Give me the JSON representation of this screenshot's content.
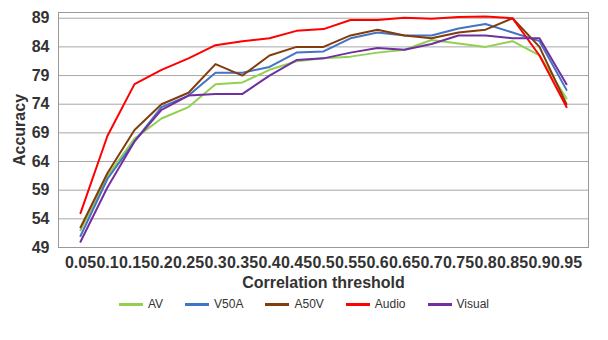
{
  "chart_data": {
    "type": "line",
    "x_label": "Correlation threshold",
    "y_label": "Accuracy",
    "categories": [
      "0.05",
      "0.1",
      "0.15",
      "0.2",
      "0.25",
      "0.3",
      "0.35",
      "0.4",
      "0.45",
      "0.5",
      "0.55",
      "0.6",
      "0.65",
      "0.7",
      "0.75",
      "0.8",
      "0.85",
      "0.9",
      "0.95"
    ],
    "series": [
      {
        "name": "AV",
        "color": "#92d050",
        "values": [
          52,
          61.5,
          68,
          71.5,
          73.5,
          77.5,
          77.8,
          80,
          81.5,
          82,
          82.3,
          83,
          83.5,
          85.2,
          84.6,
          84,
          85,
          82.5,
          75
        ]
      },
      {
        "name": "V50A",
        "color": "#4472c4",
        "values": [
          51,
          61,
          67.5,
          73.5,
          75.5,
          79.5,
          79.5,
          80.5,
          83,
          83.2,
          85.5,
          86.5,
          86,
          86,
          87.2,
          88,
          86.5,
          85,
          76.5
        ]
      },
      {
        "name": "A50V",
        "color": "#843c0c",
        "values": [
          52.5,
          62,
          69.5,
          74,
          76,
          81,
          79,
          82.5,
          84,
          84,
          86,
          87,
          86,
          85.5,
          86.5,
          87,
          89,
          84,
          74
        ]
      },
      {
        "name": "Audio",
        "color": "#ff0000",
        "values": [
          55,
          68.5,
          77.5,
          80,
          82,
          84.3,
          85,
          85.5,
          86.8,
          87.1,
          88.7,
          88.7,
          89.1,
          88.9,
          89.2,
          89.3,
          89,
          82.5,
          73.5
        ]
      },
      {
        "name": "Visual",
        "color": "#7030a0",
        "values": [
          50,
          59.5,
          67.5,
          73,
          75.5,
          75.8,
          75.8,
          79,
          81.7,
          82,
          83,
          83.8,
          83.5,
          84.5,
          86,
          86,
          85.5,
          85.5,
          77.5
        ]
      }
    ],
    "ylim": [
      49,
      90
    ],
    "yticks": [
      49,
      54,
      59,
      64,
      69,
      74,
      79,
      84,
      89
    ],
    "grid": true,
    "legend": "bottom"
  }
}
